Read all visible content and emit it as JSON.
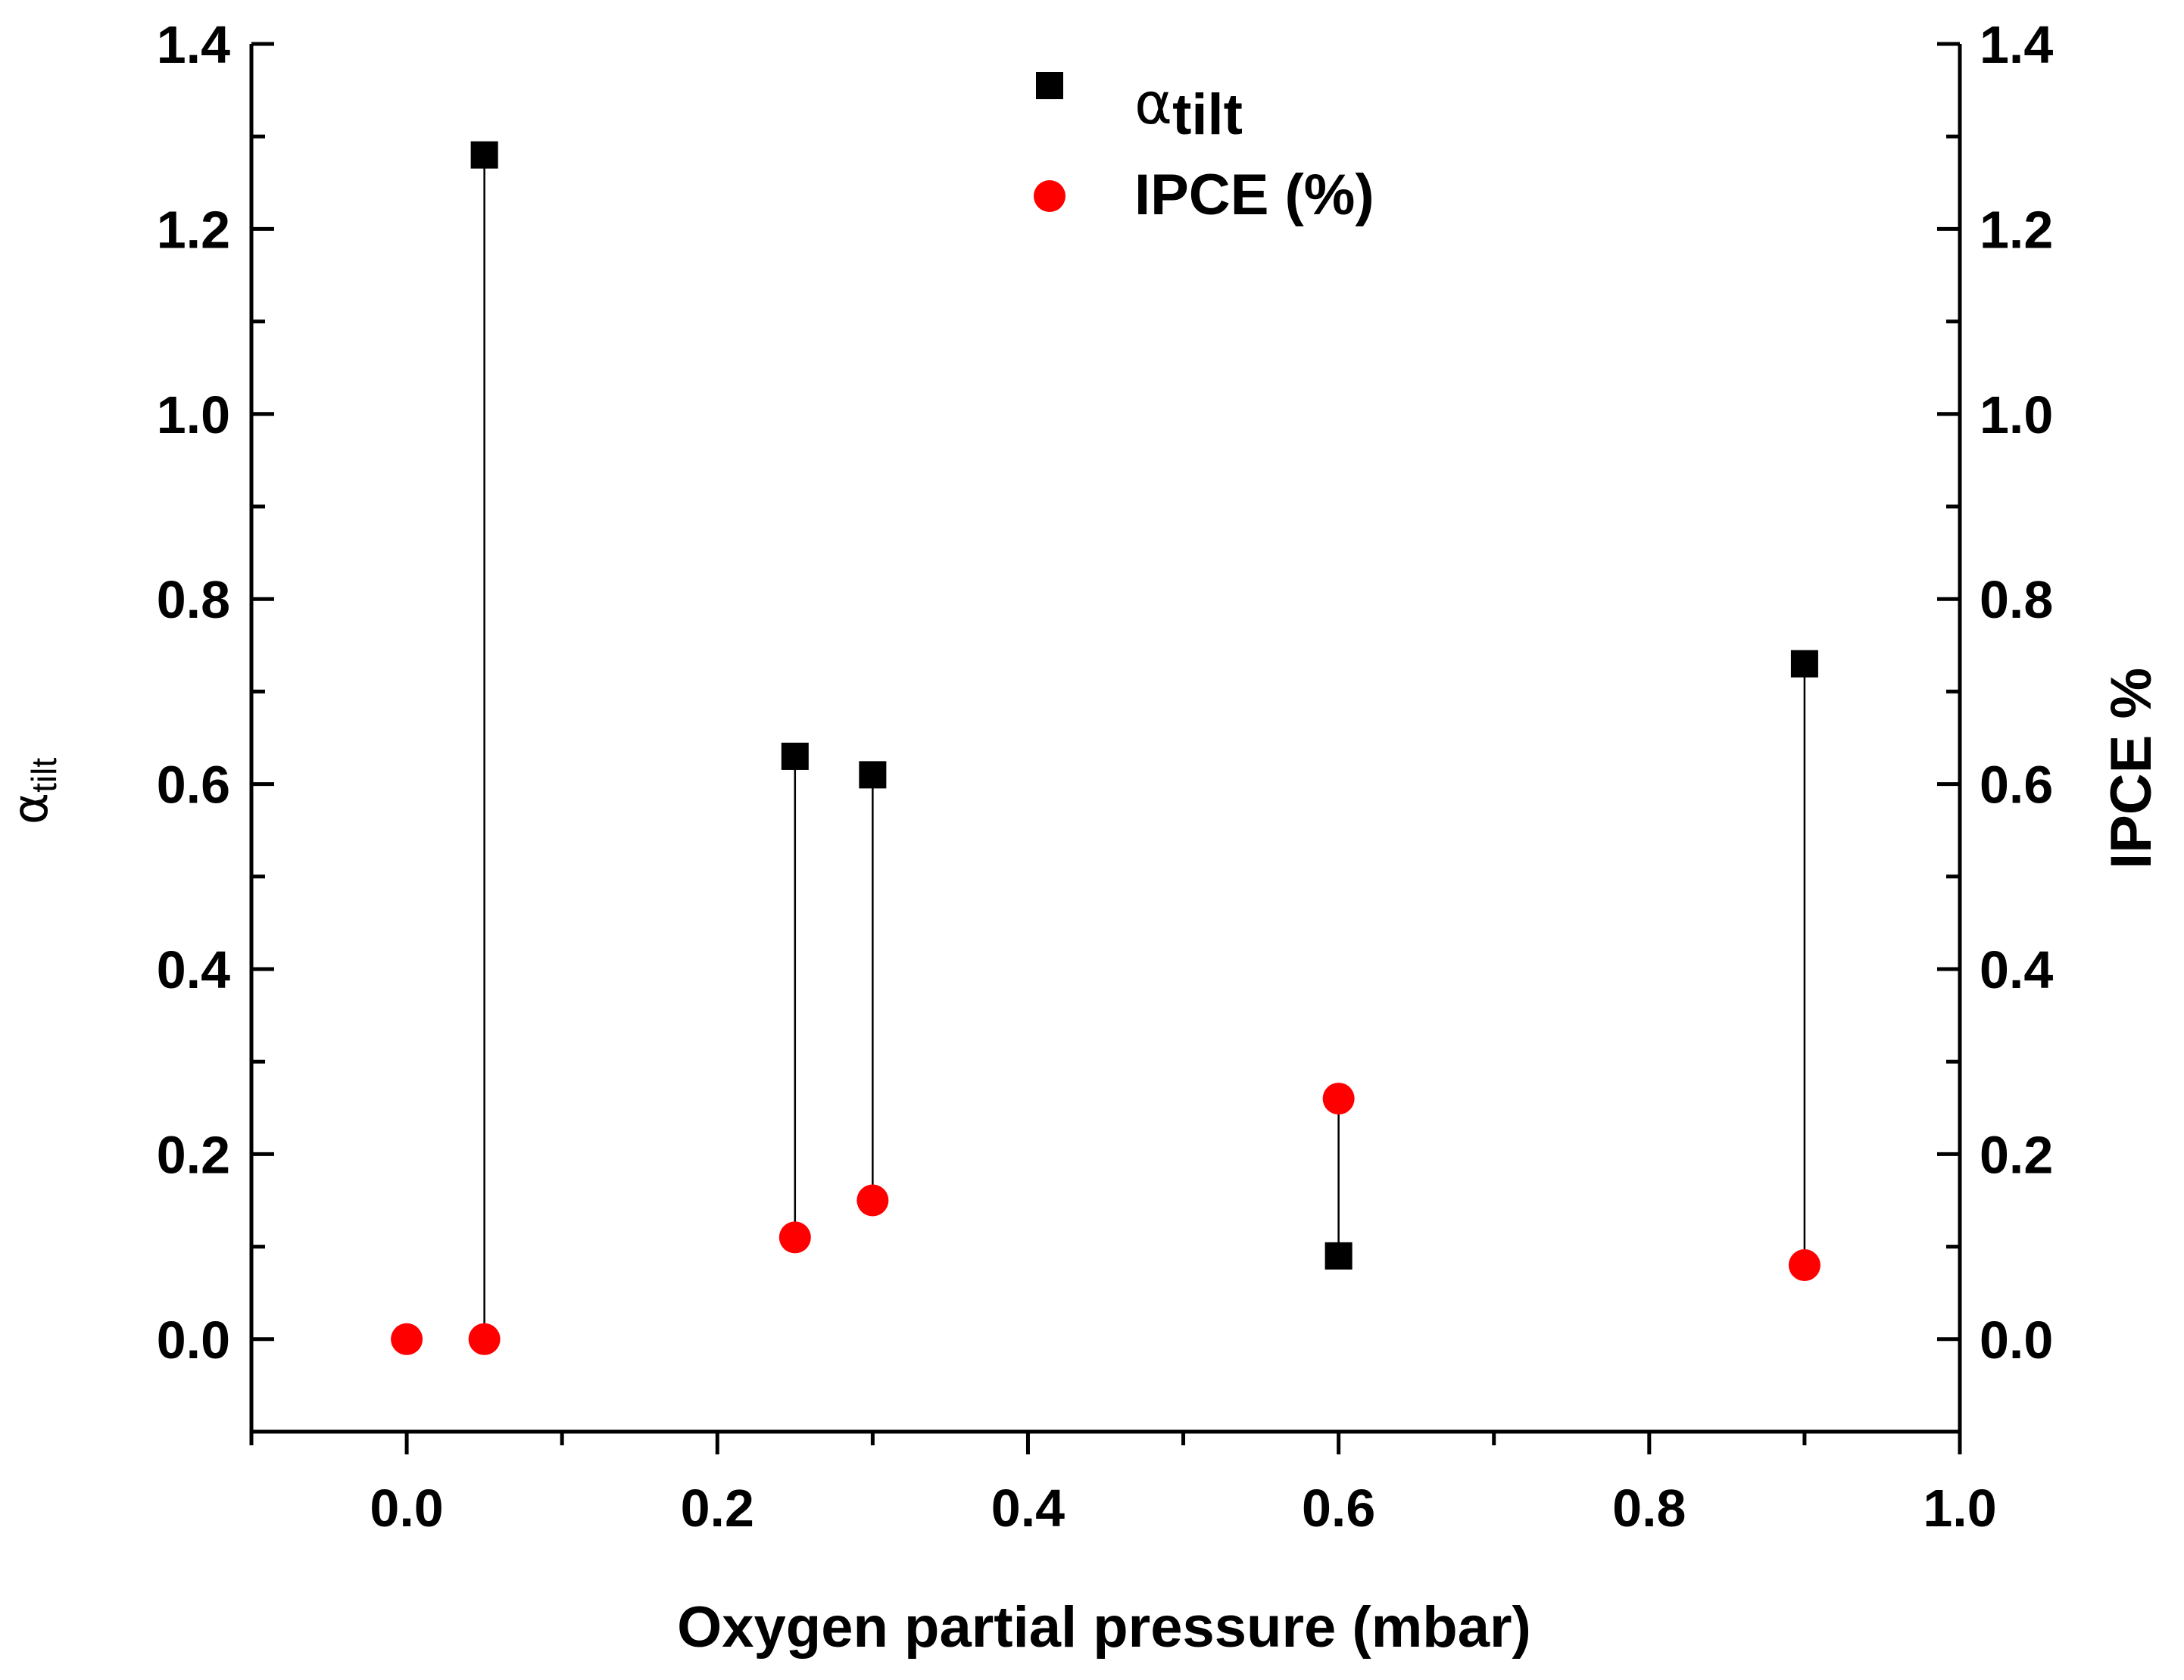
{
  "chart_data": {
    "type": "scatter",
    "xlabel": "Oxygen partial pressure (mbar)",
    "ylabel_left": {
      "symbol": "α",
      "subscript": "tilt"
    },
    "ylabel_right": "IPCE %",
    "xlim": [
      -0.1,
      1.0
    ],
    "ylim": [
      -0.1,
      1.4
    ],
    "x_ticks": [
      "0.0",
      "0.2",
      "0.4",
      "0.6",
      "0.8",
      "1.0"
    ],
    "y_ticks": [
      "0.0",
      "0.2",
      "0.4",
      "0.6",
      "0.8",
      "1.0",
      "1.2",
      "1.4"
    ],
    "series": [
      {
        "name": "α_tilt",
        "legend": {
          "symbol": "α",
          "subscript": "tilt"
        },
        "marker": "square",
        "color": "#000000",
        "x": [
          0.05,
          0.25,
          0.3,
          0.6,
          0.9
        ],
        "y": [
          1.28,
          0.63,
          0.61,
          0.09,
          0.73
        ]
      },
      {
        "name": "IPCE (%)",
        "legend": {
          "text": "IPCE (%)"
        },
        "marker": "circle",
        "color": "#ff0000",
        "x": [
          0.0,
          0.05,
          0.25,
          0.3,
          0.6,
          0.9
        ],
        "y": [
          0.0,
          0.0,
          0.11,
          0.15,
          0.26,
          0.08
        ]
      }
    ],
    "connectors": [
      {
        "x": 0.05,
        "y_from": 1.28,
        "y_to": 0.0
      },
      {
        "x": 0.25,
        "y_from": 0.63,
        "y_to": 0.11
      },
      {
        "x": 0.3,
        "y_from": 0.61,
        "y_to": 0.15
      },
      {
        "x": 0.6,
        "y_from": 0.26,
        "y_to": 0.09
      },
      {
        "x": 0.9,
        "y_from": 0.73,
        "y_to": 0.08
      }
    ],
    "legend_position": "top-center",
    "grid": false
  }
}
